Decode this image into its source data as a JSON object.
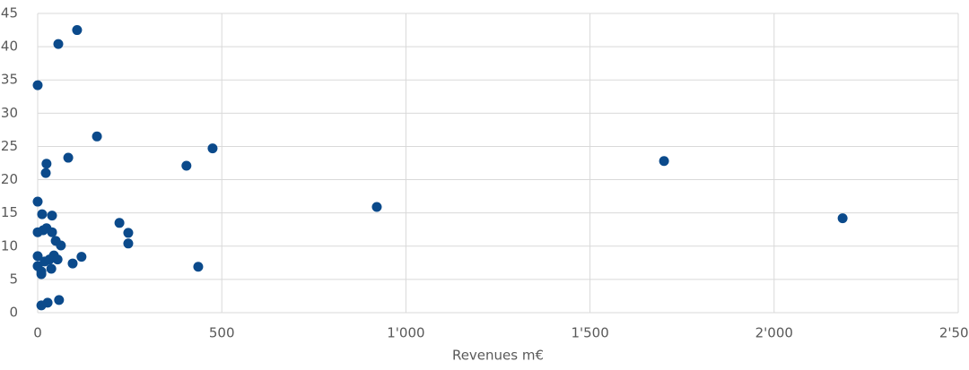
{
  "chart_data": {
    "type": "scatter",
    "x_label": "Revenues m€",
    "color": "#0b4a8b",
    "grid": true,
    "xlim": [
      0,
      2500
    ],
    "xticks": [
      0,
      500,
      {
        "value": 1000,
        "label": "1'000"
      },
      {
        "value": 1500,
        "label": "1'500"
      },
      {
        "value": 2000,
        "label": "2'000"
      },
      {
        "value": 2500,
        "label": "2'500"
      }
    ],
    "ylim": [
      0,
      45
    ],
    "yticks": [
      0,
      5,
      10,
      15,
      20,
      25,
      30,
      35,
      40,
      45
    ],
    "x": [
      56,
      107,
      0,
      161,
      475,
      404,
      83,
      24,
      22,
      1701,
      921,
      2186,
      0,
      12,
      39,
      222,
      246,
      246,
      0,
      15,
      24,
      39,
      49,
      63,
      0,
      0,
      19,
      32,
      44,
      54,
      37,
      10,
      10,
      95,
      119,
      436,
      58,
      27,
      10
    ],
    "y": [
      40.4,
      42.5,
      34.2,
      26.5,
      24.7,
      22.1,
      23.3,
      22.4,
      21.0,
      22.8,
      15.9,
      14.2,
      16.7,
      14.8,
      14.6,
      13.5,
      12.0,
      10.4,
      12.1,
      12.4,
      12.7,
      12.1,
      10.8,
      10.1,
      8.5,
      7.0,
      7.7,
      8.0,
      8.6,
      8.0,
      6.6,
      6.2,
      5.8,
      7.4,
      8.4,
      6.9,
      1.9,
      1.5,
      1.1
    ]
  }
}
